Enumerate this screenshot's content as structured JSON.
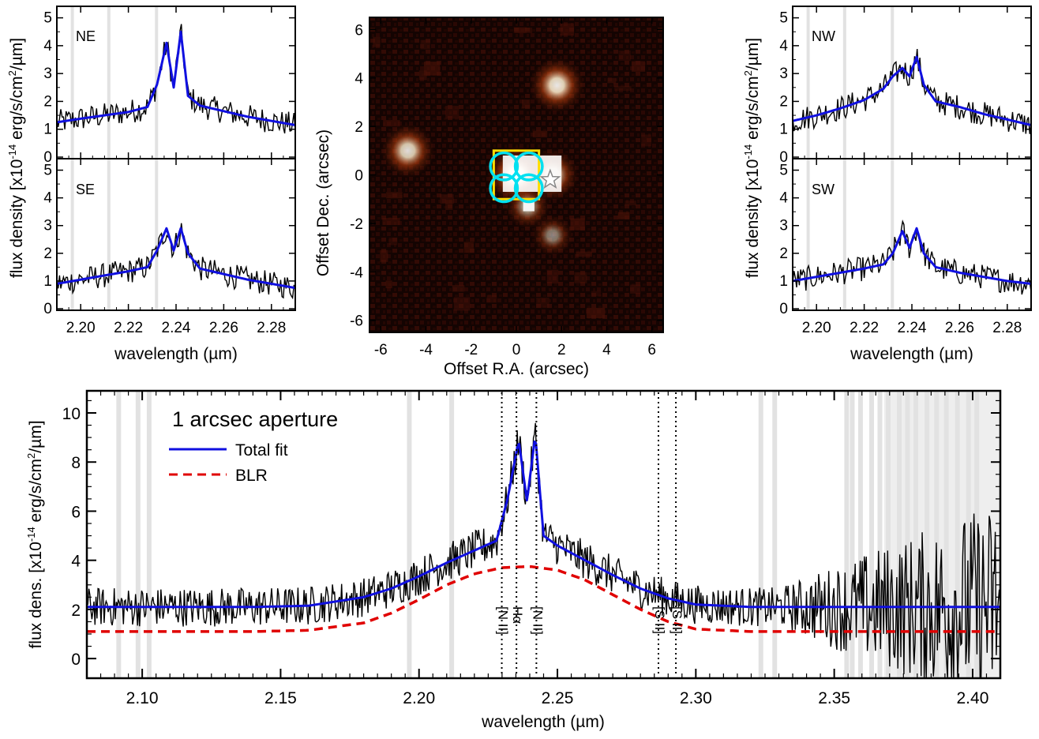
{
  "panels": {
    "NE": {
      "label": "NE",
      "ylabel_prefix": "flux density [x10",
      "ylabel_exp": "-14",
      "ylabel_suffix": " erg/s/cm",
      "ylabel_sq": "2",
      "ylabel_end": "/µm]",
      "yticks": [
        "0",
        "1",
        "2",
        "3",
        "4",
        "5"
      ]
    },
    "SE": {
      "label": "SE",
      "xlabel": "wavelength (µm)",
      "xticks": [
        "2.20",
        "2.22",
        "2.24",
        "2.26",
        "2.28"
      ],
      "yticks": [
        "0",
        "1",
        "2",
        "3",
        "4",
        "5"
      ]
    },
    "NW": {
      "label": "NW",
      "yticks": [
        "0",
        "1",
        "2",
        "3",
        "4",
        "5"
      ]
    },
    "SW": {
      "label": "SW",
      "xlabel": "wavelength (µm)",
      "xticks": [
        "2.20",
        "2.22",
        "2.24",
        "2.26",
        "2.28"
      ],
      "yticks": [
        "0",
        "1",
        "2",
        "3",
        "4",
        "5"
      ]
    }
  },
  "image_panel": {
    "xlabel": "Offset R.A.  (arcsec)",
    "ylabel": "Offset Dec.  (arcsec)",
    "xticks": [
      "-6",
      "-4",
      "-2",
      "0",
      "2",
      "4",
      "6"
    ],
    "yticks": [
      "-6",
      "-4",
      "-2",
      "0",
      "2",
      "4",
      "6"
    ]
  },
  "main_panel": {
    "legend_title": "1 arcsec aperture",
    "legend_total": "Total fit",
    "legend_blr": "BLR",
    "xlabel": "wavelength (µm)",
    "ylabel_prefix": "flux dens. [x10",
    "ylabel_exp": "-14",
    "ylabel_suffix": " erg/s/cm",
    "ylabel_sq": "2",
    "ylabel_end": "/µm]",
    "xticks": [
      "2.10",
      "2.15",
      "2.20",
      "2.25",
      "2.30",
      "2.35",
      "2.40"
    ],
    "yticks": [
      "0",
      "2",
      "4",
      "6",
      "8",
      "10"
    ],
    "line_labels": [
      "[N II]",
      "Hα",
      "[N II]",
      "[S II]",
      "[S II]"
    ]
  },
  "colors": {
    "fit": "#1010e0",
    "blr": "#e00000",
    "data": "#000000",
    "mask": "#e2e2e2",
    "yellow": "#ffdd00",
    "cyan": "#00e0f0"
  },
  "chart_data": [
    {
      "type": "line",
      "title": "NE",
      "xlabel": "",
      "ylabel": "flux density [x10^-14 erg/s/cm^2/µm]",
      "xlim": [
        2.19,
        2.29
      ],
      "ylim": [
        0,
        5.3
      ],
      "series": [
        {
          "x": [
            2.19,
            2.2,
            2.21,
            2.22,
            2.228,
            2.232,
            2.236,
            2.239,
            2.242,
            2.245,
            2.25,
            2.26,
            2.27,
            2.28,
            2.29
          ],
          "values": [
            1.25,
            1.38,
            1.5,
            1.62,
            1.8,
            2.6,
            4.1,
            2.5,
            4.5,
            2.2,
            1.85,
            1.65,
            1.45,
            1.3,
            1.15
          ]
        }
      ]
    },
    {
      "type": "line",
      "title": "SE",
      "xlabel": "wavelength (µm)",
      "ylabel": "",
      "xlim": [
        2.19,
        2.29
      ],
      "ylim": [
        0,
        5.3
      ],
      "series": [
        {
          "x": [
            2.19,
            2.2,
            2.21,
            2.22,
            2.228,
            2.232,
            2.236,
            2.239,
            2.242,
            2.245,
            2.25,
            2.26,
            2.27,
            2.28,
            2.29
          ],
          "values": [
            0.9,
            1.05,
            1.2,
            1.35,
            1.5,
            2.1,
            2.9,
            2.1,
            2.9,
            2.0,
            1.45,
            1.25,
            1.05,
            0.9,
            0.75
          ]
        }
      ]
    },
    {
      "type": "line",
      "title": "NW",
      "xlabel": "",
      "ylabel": "flux density [x10^-14 erg/s/cm^2/µm]",
      "xlim": [
        2.19,
        2.29
      ],
      "ylim": [
        0,
        5.3
      ],
      "series": [
        {
          "x": [
            2.19,
            2.2,
            2.21,
            2.22,
            2.228,
            2.232,
            2.236,
            2.239,
            2.242,
            2.245,
            2.25,
            2.26,
            2.27,
            2.28,
            2.29
          ],
          "values": [
            1.3,
            1.5,
            1.75,
            2.05,
            2.45,
            2.9,
            3.2,
            2.9,
            3.6,
            2.6,
            2.0,
            1.8,
            1.55,
            1.35,
            1.15
          ]
        }
      ]
    },
    {
      "type": "line",
      "title": "SW",
      "xlabel": "wavelength (µm)",
      "ylabel": "",
      "xlim": [
        2.19,
        2.29
      ],
      "ylim": [
        0,
        5.3
      ],
      "series": [
        {
          "x": [
            2.19,
            2.2,
            2.21,
            2.22,
            2.228,
            2.232,
            2.236,
            2.239,
            2.242,
            2.245,
            2.25,
            2.26,
            2.27,
            2.28,
            2.29
          ],
          "values": [
            1.0,
            1.15,
            1.3,
            1.45,
            1.6,
            2.0,
            2.8,
            2.2,
            2.9,
            2.0,
            1.5,
            1.3,
            1.15,
            1.0,
            0.9
          ]
        }
      ]
    },
    {
      "type": "heatmap",
      "title": "",
      "xlabel": "Offset R.A.  (arcsec)",
      "ylabel": "Offset Dec.  (arcsec)",
      "xlim": [
        -6.5,
        6.5
      ],
      "ylim": [
        -6.5,
        6.5
      ],
      "sources": [
        {
          "x": 0.0,
          "y": 0.0,
          "brightness": 1.0
        },
        {
          "x": 1.6,
          "y": 0.0,
          "brightness": 0.8
        },
        {
          "x": 1.8,
          "y": 3.7,
          "brightness": 0.9
        },
        {
          "x": -4.8,
          "y": 1.0,
          "brightness": 0.85
        },
        {
          "x": 1.6,
          "y": -2.5,
          "brightness": 0.5
        },
        {
          "x": 0.5,
          "y": -1.3,
          "brightness": 0.6
        }
      ],
      "star_marker": {
        "x": 1.5,
        "y": -0.2
      },
      "apertures": [
        {
          "x": -0.55,
          "y": 0.35,
          "r": 0.6
        },
        {
          "x": 0.55,
          "y": 0.35,
          "r": 0.6
        },
        {
          "x": -0.55,
          "y": -0.55,
          "r": 0.6
        },
        {
          "x": 0.55,
          "y": -0.55,
          "r": 0.6
        }
      ],
      "yellow_box": {
        "x0": -1.0,
        "x1": 1.0,
        "y0": -1.0,
        "y1": 1.0
      }
    },
    {
      "type": "line",
      "title": "1 arcsec aperture",
      "xlabel": "wavelength (µm)",
      "ylabel": "flux dens. [x10^-14 erg/s/cm^2/µm]",
      "xlim": [
        2.08,
        2.41
      ],
      "ylim": [
        -0.8,
        10.9
      ],
      "series": [
        {
          "name": "Total fit",
          "x": [
            2.08,
            2.1,
            2.12,
            2.14,
            2.16,
            2.18,
            2.19,
            2.2,
            2.21,
            2.22,
            2.228,
            2.232,
            2.236,
            2.239,
            2.242,
            2.245,
            2.25,
            2.26,
            2.27,
            2.28,
            2.29,
            2.3,
            2.32,
            2.35,
            2.38,
            2.41
          ],
          "values": [
            2.1,
            2.1,
            2.1,
            2.1,
            2.15,
            2.5,
            2.85,
            3.35,
            3.9,
            4.4,
            4.8,
            6.5,
            8.9,
            6.4,
            9.1,
            5.0,
            4.6,
            4.0,
            3.4,
            2.85,
            2.45,
            2.2,
            2.1,
            2.1,
            2.1,
            2.1
          ]
        },
        {
          "name": "BLR",
          "x": [
            2.08,
            2.1,
            2.12,
            2.14,
            2.16,
            2.18,
            2.19,
            2.2,
            2.21,
            2.22,
            2.23,
            2.24,
            2.25,
            2.26,
            2.27,
            2.28,
            2.29,
            2.3,
            2.32,
            2.35,
            2.38,
            2.41
          ],
          "values": [
            1.1,
            1.1,
            1.1,
            1.1,
            1.15,
            1.45,
            1.85,
            2.4,
            3.0,
            3.45,
            3.7,
            3.75,
            3.6,
            3.2,
            2.6,
            2.0,
            1.5,
            1.2,
            1.1,
            1.1,
            1.1,
            1.1
          ]
        }
      ],
      "line_markers": [
        {
          "label": "[N II]",
          "x": 2.2299
        },
        {
          "label": "Hα",
          "x": 2.2352
        },
        {
          "label": "[N II]",
          "x": 2.2424
        },
        {
          "label": "[S II]",
          "x": 2.2865
        },
        {
          "label": "[S II]",
          "x": 2.2928
        }
      ]
    }
  ]
}
